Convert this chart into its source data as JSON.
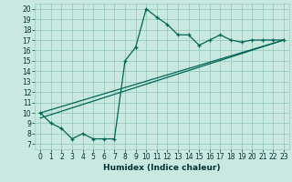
{
  "xlabel": "Humidex (Indice chaleur)",
  "background_color": "#c8e8e0",
  "grid_color": "#99ccbb",
  "line_color": "#006655",
  "xlim": [
    -0.5,
    23.5
  ],
  "ylim": [
    6.5,
    20.5
  ],
  "xticks": [
    0,
    1,
    2,
    3,
    4,
    5,
    6,
    7,
    8,
    9,
    10,
    11,
    12,
    13,
    14,
    15,
    16,
    17,
    18,
    19,
    20,
    21,
    22,
    23
  ],
  "yticks": [
    7,
    8,
    9,
    10,
    11,
    12,
    13,
    14,
    15,
    16,
    17,
    18,
    19,
    20
  ],
  "line1_x": [
    0,
    1,
    2,
    3,
    4,
    5,
    6,
    7,
    8,
    9,
    10,
    11,
    12,
    13,
    14,
    15,
    16,
    17,
    18,
    19,
    20,
    21,
    22,
    23
  ],
  "line1_y": [
    10,
    9,
    8.5,
    7.5,
    8,
    7.5,
    7.5,
    7.5,
    15,
    16.3,
    20,
    19.2,
    18.5,
    17.5,
    17.5,
    16.5,
    17,
    17.5,
    17,
    16.8,
    17,
    17,
    17,
    17
  ],
  "line2_x": [
    0,
    23
  ],
  "line2_y": [
    9.5,
    17
  ],
  "line3_x": [
    0,
    23
  ],
  "line3_y": [
    10,
    17
  ]
}
